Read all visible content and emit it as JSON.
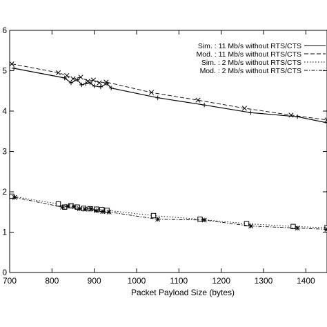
{
  "chart_data": {
    "type": "line",
    "title": "",
    "xlabel": "Packet Payload Size (bytes)",
    "ylabel": "",
    "xlim": [
      700,
      1450
    ],
    "ylim": [
      0,
      6
    ],
    "x_ticks": [
      700,
      800,
      900,
      1000,
      1100,
      1200,
      1300,
      1400
    ],
    "y_ticks": [
      0,
      1,
      2,
      3,
      4,
      5,
      6
    ],
    "y_tick_labels": [
      "0",
      "1",
      "2",
      "3",
      "4",
      "5",
      "6"
    ],
    "grid": false,
    "legend": "top-right",
    "series": [
      {
        "name": "Sim. : 11 Mb/s without RTS/CTS",
        "style": "solid",
        "marker": "plus",
        "points": [
          [
            710,
            5.06
          ],
          [
            830,
            4.82
          ],
          [
            845,
            4.7
          ],
          [
            860,
            4.78
          ],
          [
            870,
            4.65
          ],
          [
            880,
            4.68
          ],
          [
            890,
            4.7
          ],
          [
            900,
            4.62
          ],
          [
            915,
            4.6
          ],
          [
            930,
            4.68
          ],
          [
            940,
            4.57
          ],
          [
            1050,
            4.33
          ],
          [
            1160,
            4.15
          ],
          [
            1270,
            3.96
          ],
          [
            1380,
            3.86
          ],
          [
            1450,
            3.71
          ]
        ]
      },
      {
        "name": "Mod. : 11 Mb/s without RTS/CTS",
        "style": "dashed",
        "marker": "x",
        "points": [
          [
            705,
            5.17
          ],
          [
            815,
            4.95
          ],
          [
            835,
            4.88
          ],
          [
            850,
            4.8
          ],
          [
            868,
            4.84
          ],
          [
            885,
            4.74
          ],
          [
            898,
            4.77
          ],
          [
            912,
            4.7
          ],
          [
            928,
            4.72
          ],
          [
            1035,
            4.46
          ],
          [
            1145,
            4.27
          ],
          [
            1255,
            4.07
          ],
          [
            1365,
            3.9
          ],
          [
            1450,
            3.78
          ]
        ]
      },
      {
        "name": "Sim. : 2 Mb/s without RTS/CTS",
        "style": "dotted",
        "marker": "square",
        "points": [
          [
            705,
            1.89
          ],
          [
            815,
            1.7
          ],
          [
            830,
            1.62
          ],
          [
            845,
            1.66
          ],
          [
            860,
            1.62
          ],
          [
            875,
            1.59
          ],
          [
            890,
            1.58
          ],
          [
            905,
            1.57
          ],
          [
            918,
            1.56
          ],
          [
            930,
            1.54
          ],
          [
            1040,
            1.41
          ],
          [
            1150,
            1.32
          ],
          [
            1260,
            1.21
          ],
          [
            1370,
            1.14
          ],
          [
            1450,
            1.11
          ]
        ]
      },
      {
        "name": "Mod. : 2 Mb/s without RTS/CTS",
        "style": "dashdot",
        "marker": "asterisk",
        "points": [
          [
            712,
            1.86
          ],
          [
            825,
            1.62
          ],
          [
            838,
            1.64
          ],
          [
            852,
            1.63
          ],
          [
            865,
            1.58
          ],
          [
            878,
            1.57
          ],
          [
            892,
            1.58
          ],
          [
            905,
            1.53
          ],
          [
            920,
            1.51
          ],
          [
            935,
            1.5
          ],
          [
            1050,
            1.32
          ],
          [
            1160,
            1.3
          ],
          [
            1270,
            1.15
          ],
          [
            1380,
            1.1
          ],
          [
            1450,
            1.07
          ]
        ]
      }
    ]
  }
}
